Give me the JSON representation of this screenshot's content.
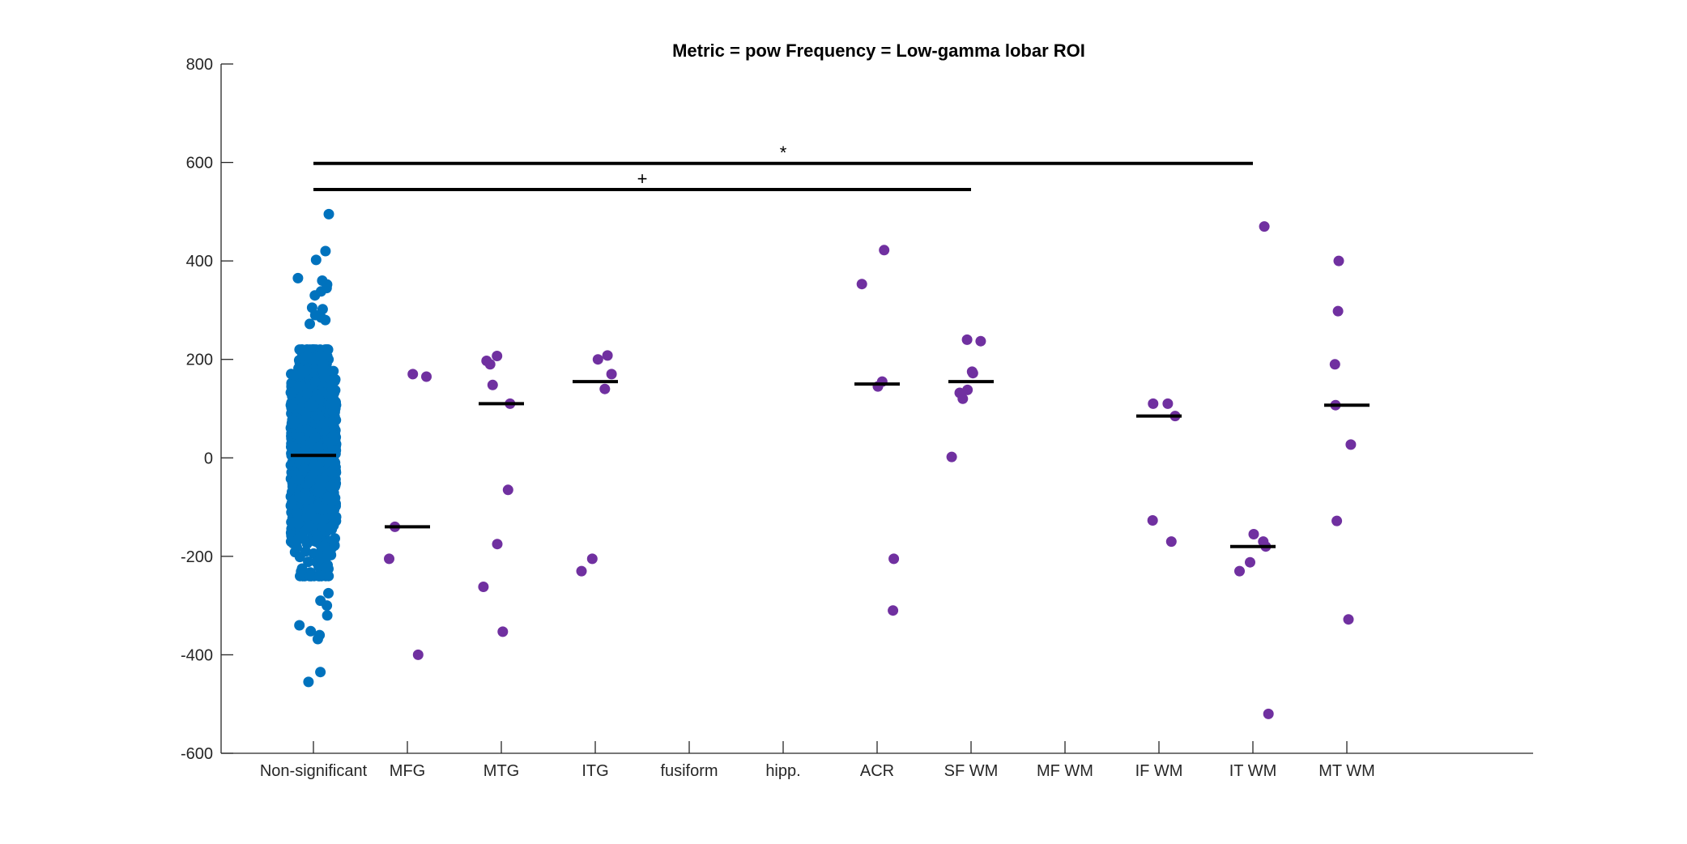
{
  "chart_data": {
    "type": "scatter",
    "title": "Metric = pow Frequency = Low-gamma lobar ROI",
    "xlabel": "",
    "ylabel": "",
    "ylim": [
      -600,
      800
    ],
    "yticks": [
      "-600",
      "-400",
      "-200",
      "0",
      "200",
      "400",
      "600",
      "800"
    ],
    "categories": [
      "Non-significant",
      "MFG",
      "MTG",
      "ITG",
      "fusiform",
      "hipp.",
      "ACR",
      "SF WM",
      "MF WM",
      "IF WM",
      "IT WM",
      "MT WM"
    ],
    "colors": {
      "nonsignificant": "#0072BD",
      "significant": "#7030A0",
      "median": "#000000",
      "axis": "#262626"
    },
    "nonsignificant_summary": {
      "n_points": "approx. 1500",
      "median": 5,
      "min": -455,
      "max": 495,
      "core_range": [
        -240,
        220
      ]
    },
    "nonsignificant_outliers": [
      495,
      420,
      402,
      365,
      360,
      352,
      345,
      338,
      330,
      305,
      302,
      290,
      285,
      280,
      272,
      -275,
      -290,
      -300,
      -320,
      -340,
      -352,
      -360,
      -368,
      -435,
      -455
    ],
    "series": [
      {
        "category": "MFG",
        "values": [
          170,
          165,
          -140,
          -205,
          -400
        ],
        "median": -140
      },
      {
        "category": "MTG",
        "values": [
          207,
          197,
          190,
          148,
          110,
          -65,
          -175,
          -262,
          -353
        ],
        "median": 110
      },
      {
        "category": "ITG",
        "values": [
          208,
          200,
          170,
          140,
          -205,
          -230
        ],
        "median": 155
      },
      {
        "category": "fusiform",
        "values": [],
        "median": null
      },
      {
        "category": "hipp.",
        "values": [],
        "median": null
      },
      {
        "category": "ACR",
        "values": [
          422,
          353,
          155,
          145,
          -205,
          -310
        ],
        "median": 150
      },
      {
        "category": "SF WM",
        "values": [
          240,
          237,
          175,
          172,
          138,
          132,
          120,
          2
        ],
        "median": 155
      },
      {
        "category": "MF WM",
        "values": [],
        "median": null
      },
      {
        "category": "IF WM",
        "values": [
          110,
          110,
          85,
          -127,
          -170
        ],
        "median": 85
      },
      {
        "category": "IT WM",
        "values": [
          470,
          -155,
          -170,
          -180,
          -212,
          -230,
          -520
        ],
        "median": -180
      },
      {
        "category": "MT WM",
        "values": [
          400,
          298,
          190,
          107,
          27,
          -128,
          -328
        ],
        "median": 107
      }
    ],
    "significance": [
      {
        "label": "*",
        "from": "Non-significant",
        "to": "IT WM",
        "y": 598
      },
      {
        "label": "+",
        "from": "Non-significant",
        "to": "SF WM",
        "y": 545
      }
    ]
  }
}
